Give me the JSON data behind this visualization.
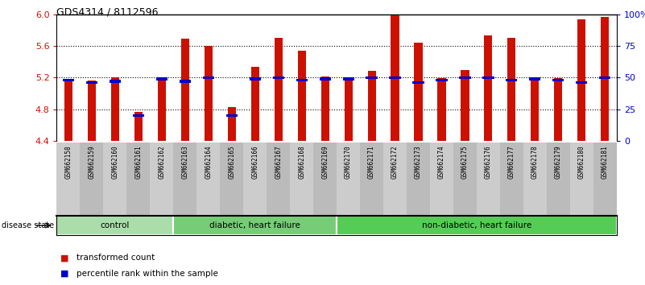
{
  "title": "GDS4314 / 8112596",
  "samples": [
    "GSM662158",
    "GSM662159",
    "GSM662160",
    "GSM662161",
    "GSM662162",
    "GSM662163",
    "GSM662164",
    "GSM662165",
    "GSM662166",
    "GSM662167",
    "GSM662168",
    "GSM662169",
    "GSM662170",
    "GSM662171",
    "GSM662172",
    "GSM662173",
    "GSM662174",
    "GSM662175",
    "GSM662176",
    "GSM662177",
    "GSM662178",
    "GSM662179",
    "GSM662180",
    "GSM662181"
  ],
  "transformed_count": [
    5.18,
    5.16,
    5.2,
    4.77,
    5.19,
    5.69,
    5.6,
    4.83,
    5.34,
    5.7,
    5.54,
    5.21,
    5.2,
    5.29,
    5.99,
    5.64,
    5.19,
    5.3,
    5.73,
    5.7,
    5.19,
    5.19,
    5.94,
    5.97
  ],
  "percentile_rank": [
    48,
    46,
    47,
    20,
    49,
    47,
    50,
    20,
    49,
    50,
    48,
    49,
    49,
    50,
    50,
    46,
    48,
    50,
    50,
    48,
    49,
    48,
    46,
    50
  ],
  "bar_bottom": 4.4,
  "ylim_left": [
    4.4,
    6.0
  ],
  "ylim_right": [
    0,
    100
  ],
  "yticks_left": [
    4.4,
    4.8,
    5.2,
    5.6,
    6.0
  ],
  "yticks_right": [
    0,
    25,
    50,
    75,
    100
  ],
  "ytick_labels_right": [
    "0",
    "25",
    "50",
    "75",
    "100%"
  ],
  "groups": [
    {
      "label": "control",
      "start": 0,
      "end": 5,
      "color": "#aaddaa"
    },
    {
      "label": "diabetic, heart failure",
      "start": 5,
      "end": 12,
      "color": "#77cc77"
    },
    {
      "label": "non-diabetic, heart failure",
      "start": 12,
      "end": 24,
      "color": "#55cc55"
    }
  ],
  "bar_color": "#cc1100",
  "percentile_color": "#0000cc",
  "grid_color": "#000000",
  "background_color": "#ffffff",
  "tick_label_color_left": "#cc1100",
  "tick_label_color_right": "#0000cc",
  "tick_bg_color": "#cccccc",
  "disease_state_label": "disease state",
  "legend_items": [
    {
      "color": "#cc1100",
      "label": "transformed count"
    },
    {
      "color": "#0000cc",
      "label": "percentile rank within the sample"
    }
  ]
}
